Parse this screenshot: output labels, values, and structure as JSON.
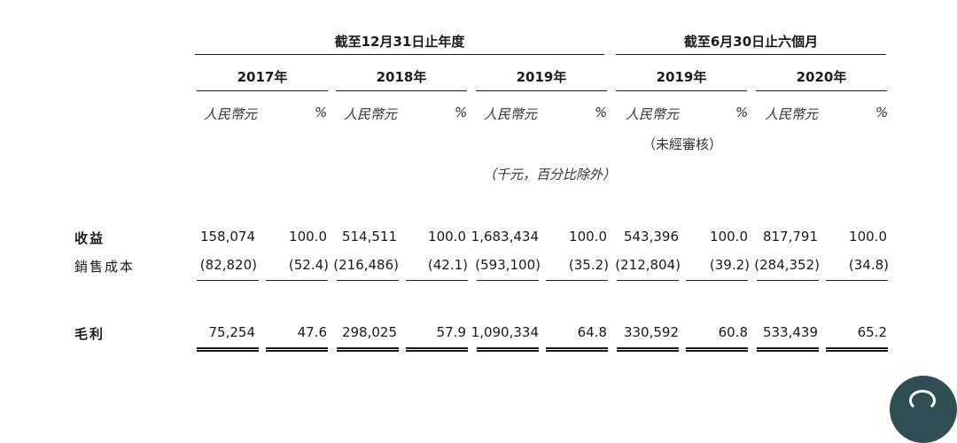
{
  "header": {
    "group_annual": "截至12月31日止年度",
    "group_half": "截至6月30日止六個月",
    "years": [
      "2017年",
      "2018年",
      "2019年",
      "2019年",
      "2020年"
    ]
  },
  "units": {
    "rmb": "人民幣元",
    "pct": "%",
    "unaudited": "（未經審核）",
    "thousands_note": "（千元，百分比除外）"
  },
  "rows": [
    {
      "label": "收益",
      "values": [
        "158,074",
        "100.0",
        "514,511",
        "100.0",
        "1,683,434",
        "100.0",
        "543,396",
        "100.0",
        "817,791",
        "100.0"
      ]
    },
    {
      "label": "銷售成本",
      "values": [
        "(82,820)",
        "(52.4)",
        "(216,486)",
        "(42.1)",
        "(593,100)",
        "(35.2)",
        "(212,804)",
        "(39.2)",
        "(284,352)",
        "(34.8)"
      ]
    },
    {
      "label": "毛利",
      "values": [
        "75,254",
        "47.6",
        "298,025",
        "57.9",
        "1,090,334",
        "64.8",
        "330,592",
        "60.8",
        "533,439",
        "65.2"
      ]
    }
  ],
  "icons": {
    "corner": "share-icon"
  }
}
